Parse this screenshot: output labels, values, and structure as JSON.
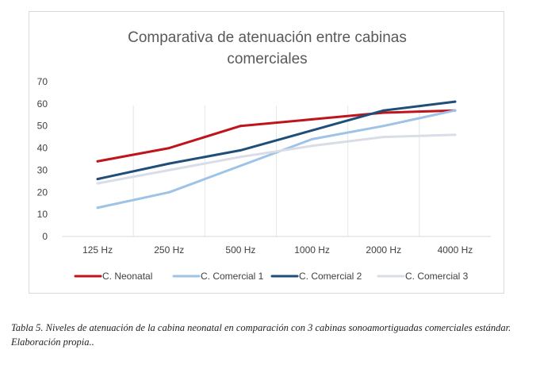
{
  "chart_data": {
    "type": "line",
    "title": "Comparativa de atenuación entre cabinas comerciales",
    "title_lines": [
      "Comparativa de atenuación entre cabinas",
      "comerciales"
    ],
    "categories": [
      "125 Hz",
      "250 Hz",
      "500 Hz",
      "1000 Hz",
      "2000 Hz",
      "4000 Hz"
    ],
    "ylim": [
      0,
      70
    ],
    "y_ticks": [
      0,
      10,
      20,
      30,
      40,
      50,
      60,
      70
    ],
    "grid": "vertical",
    "legend_position": "bottom",
    "series": [
      {
        "name": "C. Neonatal",
        "color": "#c0141c",
        "values": [
          34,
          40,
          50,
          53,
          56,
          57
        ]
      },
      {
        "name": "C. Comercial 1",
        "color": "#9ec3e6",
        "values": [
          13,
          20,
          32,
          44,
          50,
          57
        ]
      },
      {
        "name": "C. Comercial 2",
        "color": "#1f4e79",
        "values": [
          26,
          33,
          39,
          48,
          57,
          61
        ]
      },
      {
        "name": "C. Comercial 3",
        "color": "#d9dde8",
        "values": [
          24,
          30,
          36,
          41,
          45,
          46
        ]
      }
    ]
  },
  "caption": "Tabla 5.  Niveles  de atenuación de la cabina neonatal en comparación con 3 cabinas sonoamortiguadas comerciales estándar. Elaboración propia.."
}
